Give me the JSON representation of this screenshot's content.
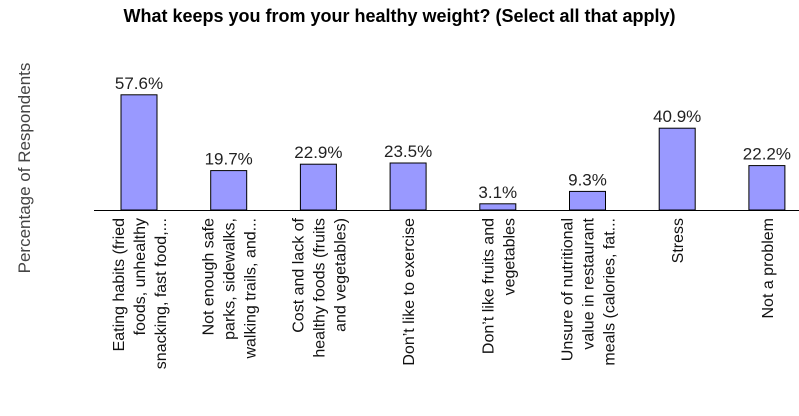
{
  "chart_data": {
    "type": "bar",
    "title": "What keeps you from your healthy weight? (Select all that apply)",
    "ylabel": "Percentage of Respondents",
    "xlabel": "",
    "ylim": [
      0,
      60
    ],
    "bar_color": "#9999ff",
    "bar_outline": "#000000",
    "categories": [
      [
        "Eating habits (fried",
        "foods, unhealthy",
        "snacking, fast food,..."
      ],
      [
        "Not enough safe",
        "parks, sidewalks,",
        "walking trails, and..."
      ],
      [
        "Cost and lack of",
        "healthy foods (fruits",
        "and vegetables)"
      ],
      [
        "Don’t like to exercise"
      ],
      [
        "Don’t like fruits and",
        "vegetables"
      ],
      [
        "Unsure of nutritional",
        "value in restaurant",
        "meals (calories, fat..."
      ],
      [
        "Stress"
      ],
      [
        "Not a problem"
      ]
    ],
    "values": [
      57.6,
      19.7,
      22.9,
      23.5,
      3.1,
      9.3,
      40.9,
      22.2
    ],
    "data_labels": [
      "57.6%",
      "19.7%",
      "22.9%",
      "23.5%",
      "3.1%",
      "9.3%",
      "40.9%",
      "22.2%"
    ]
  }
}
